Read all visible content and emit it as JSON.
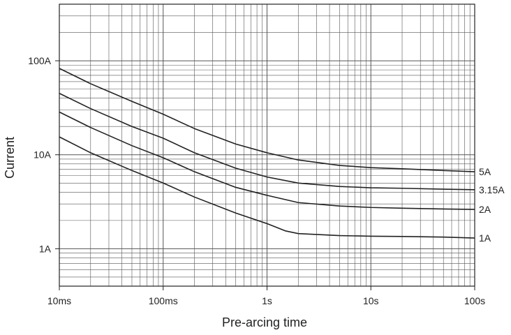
{
  "chart_data": {
    "type": "line",
    "title": "",
    "xlabel": "Pre-arcing time",
    "ylabel": "Current",
    "x_scale": "log",
    "y_scale": "log",
    "x_unit": "s",
    "y_unit": "A",
    "xlim": [
      0.01,
      100
    ],
    "ylim": [
      0.4,
      400
    ],
    "grid": true,
    "x_ticks": [
      {
        "value": 0.01,
        "label": "10ms"
      },
      {
        "value": 0.1,
        "label": "100ms"
      },
      {
        "value": 1,
        "label": "1s"
      },
      {
        "value": 10,
        "label": "10s"
      },
      {
        "value": 100,
        "label": "100s"
      }
    ],
    "y_ticks": [
      {
        "value": 1,
        "label": "1A"
      },
      {
        "value": 10,
        "label": "10A"
      },
      {
        "value": 100,
        "label": "100A"
      }
    ],
    "series": [
      {
        "name": "5A",
        "x": [
          0.01,
          0.02,
          0.05,
          0.1,
          0.2,
          0.5,
          1,
          2,
          5,
          10,
          20,
          50,
          100
        ],
        "y": [
          83,
          57,
          37,
          27,
          19,
          13,
          10.5,
          8.8,
          7.7,
          7.3,
          7.1,
          6.8,
          6.6
        ]
      },
      {
        "name": "3.15A",
        "x": [
          0.01,
          0.02,
          0.05,
          0.1,
          0.2,
          0.5,
          1,
          2,
          5,
          10,
          20,
          50,
          100
        ],
        "y": [
          45,
          31,
          20,
          15,
          10.5,
          7.2,
          5.8,
          5.0,
          4.6,
          4.45,
          4.4,
          4.3,
          4.25
        ]
      },
      {
        "name": "2A",
        "x": [
          0.01,
          0.02,
          0.05,
          0.1,
          0.2,
          0.5,
          1,
          2,
          5,
          10,
          20,
          50,
          100
        ],
        "y": [
          28.5,
          19.5,
          12.5,
          9.3,
          6.6,
          4.5,
          3.7,
          3.1,
          2.85,
          2.75,
          2.7,
          2.65,
          2.62
        ]
      },
      {
        "name": "1A",
        "x": [
          0.01,
          0.02,
          0.05,
          0.1,
          0.2,
          0.5,
          1,
          1.5,
          2,
          5,
          10,
          20,
          50,
          100
        ],
        "y": [
          15.5,
          10.5,
          6.8,
          5.0,
          3.55,
          2.4,
          1.85,
          1.55,
          1.45,
          1.38,
          1.36,
          1.35,
          1.33,
          1.3
        ]
      }
    ],
    "colors": {
      "line": "#222222",
      "grid": "#555555",
      "frame": "#222222"
    }
  }
}
